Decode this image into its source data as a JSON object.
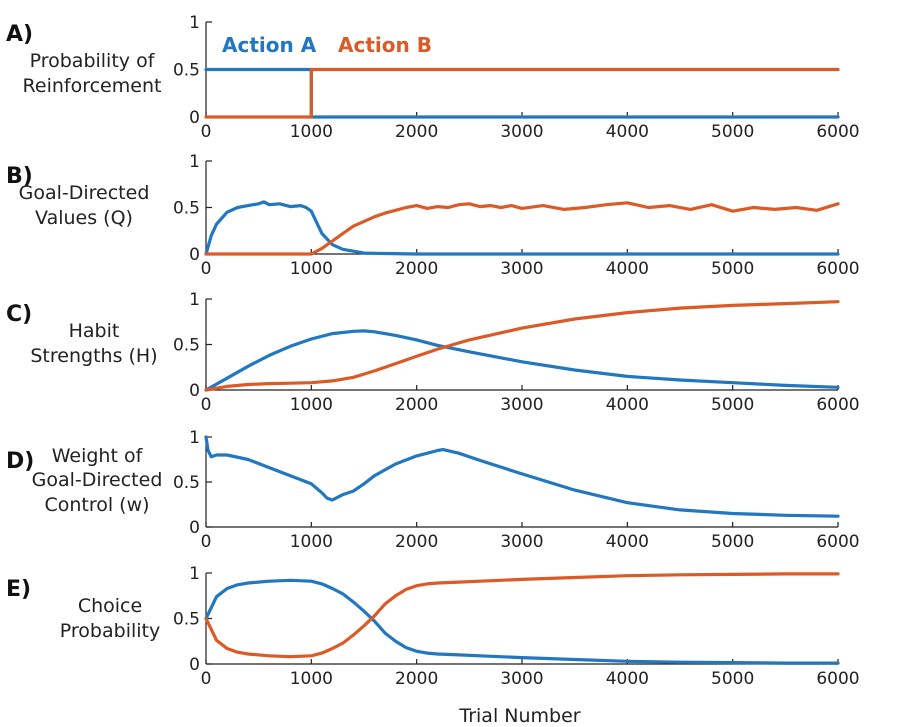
{
  "colors": {
    "action_a": "#2177c0",
    "action_b": "#dc5a26"
  },
  "legend": {
    "action_a": "Action A",
    "action_b": "Action B"
  },
  "xlabel": "Trial Number",
  "chart_data": [
    {
      "type": "line",
      "panel": "A)",
      "ylabel_lines": [
        "Probability of",
        "Reinforcement"
      ],
      "ylim": [
        0,
        1
      ],
      "yticks": [
        "0",
        "0.5",
        "1"
      ],
      "xlim": [
        0,
        6000
      ],
      "xticks": [
        "0",
        "1000",
        "2000",
        "3000",
        "4000",
        "5000",
        "6000"
      ],
      "series": [
        {
          "name": "Action A",
          "x": [
            0,
            1000,
            1000,
            6000
          ],
          "y": [
            0.5,
            0.5,
            0,
            0
          ]
        },
        {
          "name": "Action B",
          "x": [
            0,
            1000,
            1000,
            6000
          ],
          "y": [
            0,
            0,
            0.5,
            0.5
          ]
        }
      ]
    },
    {
      "type": "line",
      "panel": "B)",
      "ylabel_lines": [
        "Goal-Directed",
        "Values (Q)"
      ],
      "ylim": [
        0,
        1
      ],
      "yticks": [
        "0",
        "0.5",
        "1"
      ],
      "xlim": [
        0,
        6000
      ],
      "xticks": [
        "0",
        "1000",
        "2000",
        "3000",
        "4000",
        "5000",
        "6000"
      ],
      "series": [
        {
          "name": "Action A",
          "x": [
            0,
            50,
            100,
            200,
            300,
            400,
            500,
            550,
            600,
            700,
            800,
            900,
            950,
            1000,
            1050,
            1100,
            1200,
            1300,
            1400,
            1500,
            1700,
            2000,
            6000
          ],
          "y": [
            0,
            0.2,
            0.32,
            0.45,
            0.5,
            0.52,
            0.54,
            0.56,
            0.53,
            0.54,
            0.51,
            0.52,
            0.5,
            0.46,
            0.34,
            0.22,
            0.1,
            0.05,
            0.03,
            0.01,
            0.005,
            0,
            0
          ]
        },
        {
          "name": "Action B",
          "x": [
            0,
            1000,
            1100,
            1200,
            1300,
            1400,
            1500,
            1600,
            1700,
            1800,
            1900,
            2000,
            2100,
            2200,
            2300,
            2400,
            2500,
            2600,
            2700,
            2800,
            2900,
            3000,
            3200,
            3400,
            3600,
            3800,
            4000,
            4200,
            4400,
            4600,
            4800,
            5000,
            5200,
            5400,
            5600,
            5800,
            6000
          ],
          "y": [
            0,
            0,
            0.06,
            0.14,
            0.22,
            0.3,
            0.35,
            0.4,
            0.44,
            0.47,
            0.5,
            0.52,
            0.49,
            0.51,
            0.5,
            0.53,
            0.54,
            0.51,
            0.52,
            0.5,
            0.52,
            0.49,
            0.52,
            0.48,
            0.5,
            0.53,
            0.55,
            0.5,
            0.52,
            0.48,
            0.53,
            0.46,
            0.5,
            0.48,
            0.5,
            0.47,
            0.54
          ]
        }
      ]
    },
    {
      "type": "line",
      "panel": "C)",
      "ylabel_lines": [
        "Habit",
        "Strengths (H)"
      ],
      "ylim": [
        0,
        1
      ],
      "yticks": [
        "0",
        "0.5",
        "1"
      ],
      "xlim": [
        0,
        6000
      ],
      "xticks": [
        "0",
        "1000",
        "2000",
        "3000",
        "4000",
        "5000",
        "6000"
      ],
      "series": [
        {
          "name": "Action A",
          "x": [
            0,
            200,
            400,
            600,
            800,
            1000,
            1200,
            1400,
            1500,
            1600,
            1800,
            2000,
            2200,
            2500,
            3000,
            3500,
            4000,
            4500,
            5000,
            5500,
            6000
          ],
          "y": [
            0,
            0.13,
            0.26,
            0.38,
            0.48,
            0.56,
            0.62,
            0.645,
            0.65,
            0.64,
            0.6,
            0.55,
            0.49,
            0.42,
            0.31,
            0.22,
            0.15,
            0.11,
            0.08,
            0.05,
            0.03
          ]
        },
        {
          "name": "Action B",
          "x": [
            0,
            200,
            400,
            600,
            800,
            1000,
            1200,
            1400,
            1600,
            1800,
            2000,
            2200,
            2500,
            3000,
            3500,
            4000,
            4500,
            5000,
            5500,
            6000
          ],
          "y": [
            0,
            0.04,
            0.06,
            0.07,
            0.075,
            0.08,
            0.1,
            0.14,
            0.21,
            0.29,
            0.37,
            0.45,
            0.55,
            0.68,
            0.78,
            0.85,
            0.9,
            0.93,
            0.95,
            0.97
          ]
        }
      ]
    },
    {
      "type": "line",
      "panel": "D)",
      "ylabel_lines": [
        "Weight of",
        "Goal-Directed",
        "Control (w)"
      ],
      "ylim": [
        0,
        1
      ],
      "yticks": [
        "0",
        "0.5",
        "1"
      ],
      "xlim": [
        0,
        6000
      ],
      "xticks": [
        "0",
        "1000",
        "2000",
        "3000",
        "4000",
        "5000",
        "6000"
      ],
      "series": [
        {
          "name": "Action A",
          "x": [
            0,
            20,
            50,
            100,
            200,
            400,
            600,
            800,
            1000,
            1100,
            1150,
            1200,
            1300,
            1400,
            1500,
            1600,
            1800,
            2000,
            2200,
            2250,
            2400,
            2600,
            3000,
            3500,
            4000,
            4500,
            5000,
            5500,
            6000
          ],
          "y": [
            1,
            0.85,
            0.78,
            0.8,
            0.8,
            0.75,
            0.66,
            0.57,
            0.48,
            0.38,
            0.32,
            0.3,
            0.36,
            0.4,
            0.48,
            0.57,
            0.7,
            0.79,
            0.85,
            0.86,
            0.82,
            0.74,
            0.59,
            0.41,
            0.27,
            0.19,
            0.15,
            0.13,
            0.12
          ]
        }
      ]
    },
    {
      "type": "line",
      "panel": "E)",
      "ylabel_lines": [
        "Choice",
        "Probability"
      ],
      "ylim": [
        0,
        1
      ],
      "yticks": [
        "0",
        "0.5",
        "1"
      ],
      "xlim": [
        0,
        6000
      ],
      "xticks": [
        "0",
        "1000",
        "2000",
        "3000",
        "4000",
        "5000",
        "6000"
      ],
      "series": [
        {
          "name": "Action A",
          "x": [
            0,
            50,
            100,
            200,
            300,
            400,
            600,
            800,
            1000,
            1100,
            1200,
            1300,
            1400,
            1500,
            1600,
            1700,
            1800,
            1900,
            2000,
            2100,
            2200,
            2400,
            2600,
            3000,
            3500,
            4000,
            4500,
            5000,
            5500,
            6000
          ],
          "y": [
            0.5,
            0.62,
            0.74,
            0.83,
            0.87,
            0.89,
            0.91,
            0.92,
            0.91,
            0.88,
            0.83,
            0.77,
            0.68,
            0.58,
            0.47,
            0.34,
            0.25,
            0.18,
            0.14,
            0.12,
            0.11,
            0.1,
            0.09,
            0.07,
            0.05,
            0.03,
            0.02,
            0.015,
            0.01,
            0.01
          ]
        },
        {
          "name": "Action B",
          "x": [
            0,
            50,
            100,
            200,
            300,
            400,
            600,
            800,
            1000,
            1100,
            1200,
            1300,
            1400,
            1500,
            1600,
            1700,
            1800,
            1900,
            2000,
            2100,
            2200,
            2400,
            2600,
            3000,
            3500,
            4000,
            4500,
            5000,
            5500,
            6000
          ],
          "y": [
            0.5,
            0.38,
            0.26,
            0.17,
            0.13,
            0.11,
            0.09,
            0.08,
            0.09,
            0.12,
            0.17,
            0.23,
            0.32,
            0.42,
            0.53,
            0.66,
            0.75,
            0.82,
            0.86,
            0.88,
            0.89,
            0.9,
            0.91,
            0.93,
            0.95,
            0.97,
            0.98,
            0.985,
            0.99,
            0.99
          ]
        }
      ]
    }
  ]
}
